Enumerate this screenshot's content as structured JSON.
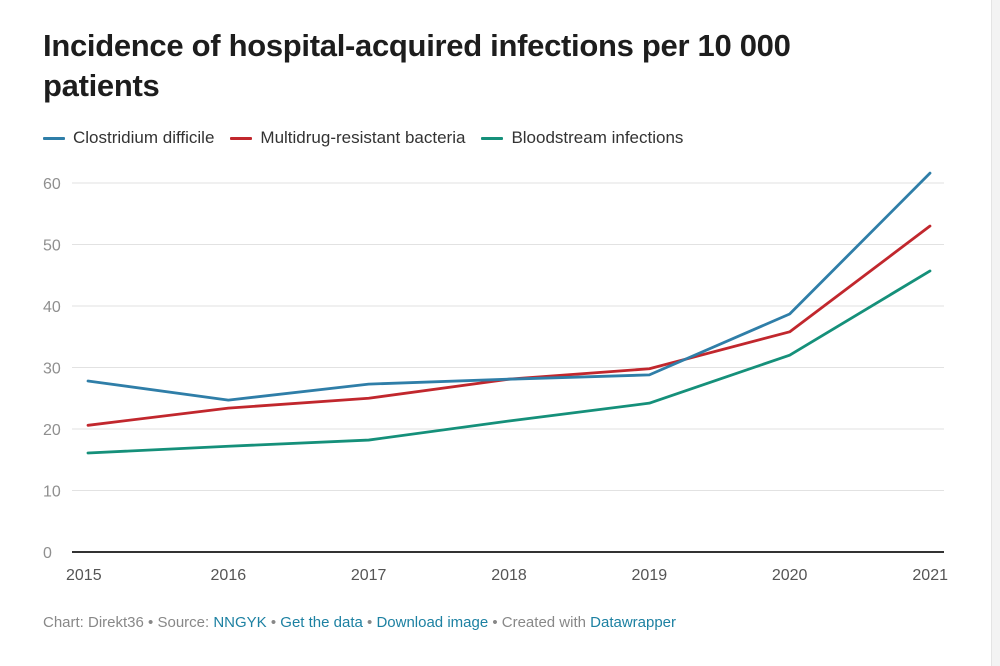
{
  "chart_data": {
    "type": "line",
    "title": "Incidence of hospital-acquired infections per 10 000 patients",
    "xlabel": "",
    "ylabel": "",
    "x": [
      "2015",
      "2016",
      "2017",
      "2018",
      "2019",
      "2020",
      "2021"
    ],
    "ylim": [
      0,
      60
    ],
    "yticks": [
      0,
      10,
      20,
      30,
      40,
      50,
      60
    ],
    "grid": true,
    "legend_position": "top-left",
    "series": [
      {
        "name": "Clostridium difficile",
        "color": "#2f7ea8",
        "values": [
          27.8,
          24.7,
          27.3,
          28.1,
          28.8,
          38.7,
          61.6
        ]
      },
      {
        "name": "Multidrug-resistant bacteria",
        "color": "#c1272d",
        "values": [
          20.6,
          23.4,
          25.0,
          28.1,
          29.8,
          35.8,
          53.0
        ]
      },
      {
        "name": "Bloodstream infections",
        "color": "#15907a",
        "values": [
          16.1,
          17.2,
          18.2,
          21.3,
          24.2,
          32.0,
          45.7
        ]
      }
    ]
  },
  "footer": {
    "chart_by": "Chart: Direkt36",
    "sep": " • ",
    "source_label": "Source: ",
    "source_link": "NNGYK",
    "get_data": "Get the data",
    "download": "Download image",
    "created_with": "Created with ",
    "tool": "Datawrapper"
  }
}
